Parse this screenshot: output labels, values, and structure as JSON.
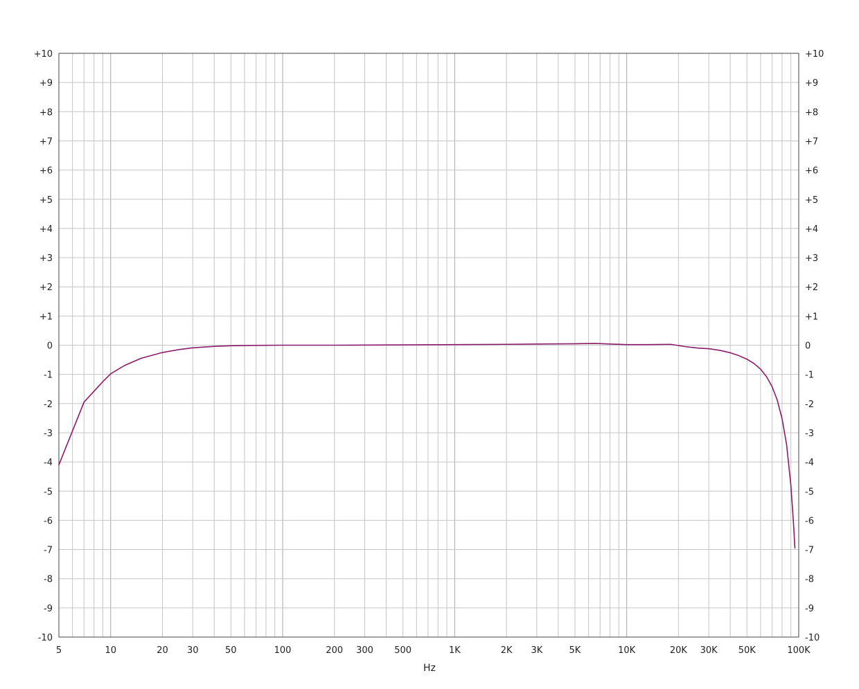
{
  "chart_data": {
    "type": "line",
    "xlabel": "Hz",
    "ylabel": "",
    "x_scale": "log",
    "xlim": [
      5,
      100000
    ],
    "ylim": [
      -10,
      10
    ],
    "grid": true,
    "x_tick_values": [
      5,
      10,
      20,
      30,
      50,
      100,
      200,
      300,
      500,
      1000,
      2000,
      3000,
      5000,
      10000,
      20000,
      30000,
      50000,
      100000
    ],
    "x_tick_labels": [
      "5",
      "10",
      "20",
      "30",
      "50",
      "100",
      "200",
      "300",
      "500",
      "1K",
      "2K",
      "3K",
      "5K",
      "10K",
      "20K",
      "30K",
      "50K",
      "100K"
    ],
    "y_tick_values": [
      10,
      9,
      8,
      7,
      6,
      5,
      4,
      3,
      2,
      1,
      0,
      -1,
      -2,
      -3,
      -4,
      -5,
      -6,
      -7,
      -8,
      -9,
      -10
    ],
    "y_tick_labels": [
      "+10",
      "+9",
      "+8",
      "+7",
      "+6",
      "+5",
      "+4",
      "+3",
      "+2",
      "+1",
      "0",
      "-1",
      "-2",
      "-3",
      "-4",
      "-5",
      "-6",
      "-7",
      "-8",
      "-9",
      "-10"
    ],
    "series": [
      {
        "color": "#8b1a6b",
        "x": [
          5,
          7,
          9,
          10,
          12,
          15,
          20,
          25,
          30,
          40,
          50,
          60,
          100,
          200,
          500,
          1000,
          2000,
          5000,
          6500,
          8000,
          10000,
          13000,
          18000,
          22000,
          26000,
          30000,
          35000,
          40000,
          45000,
          50000,
          55000,
          60000,
          65000,
          70000,
          75000,
          80000,
          85000,
          90000,
          93000,
          95000
        ],
        "y": [
          -4.1,
          -1.95,
          -1.25,
          -0.98,
          -0.7,
          -0.45,
          -0.25,
          -0.15,
          -0.09,
          -0.04,
          -0.02,
          -0.01,
          0.0,
          0.0,
          0.01,
          0.02,
          0.03,
          0.05,
          0.06,
          0.04,
          0.02,
          0.02,
          0.03,
          -0.05,
          -0.1,
          -0.12,
          -0.18,
          -0.26,
          -0.36,
          -0.48,
          -0.63,
          -0.82,
          -1.08,
          -1.42,
          -1.88,
          -2.52,
          -3.4,
          -4.8,
          -6.0,
          -6.95
        ]
      }
    ]
  }
}
